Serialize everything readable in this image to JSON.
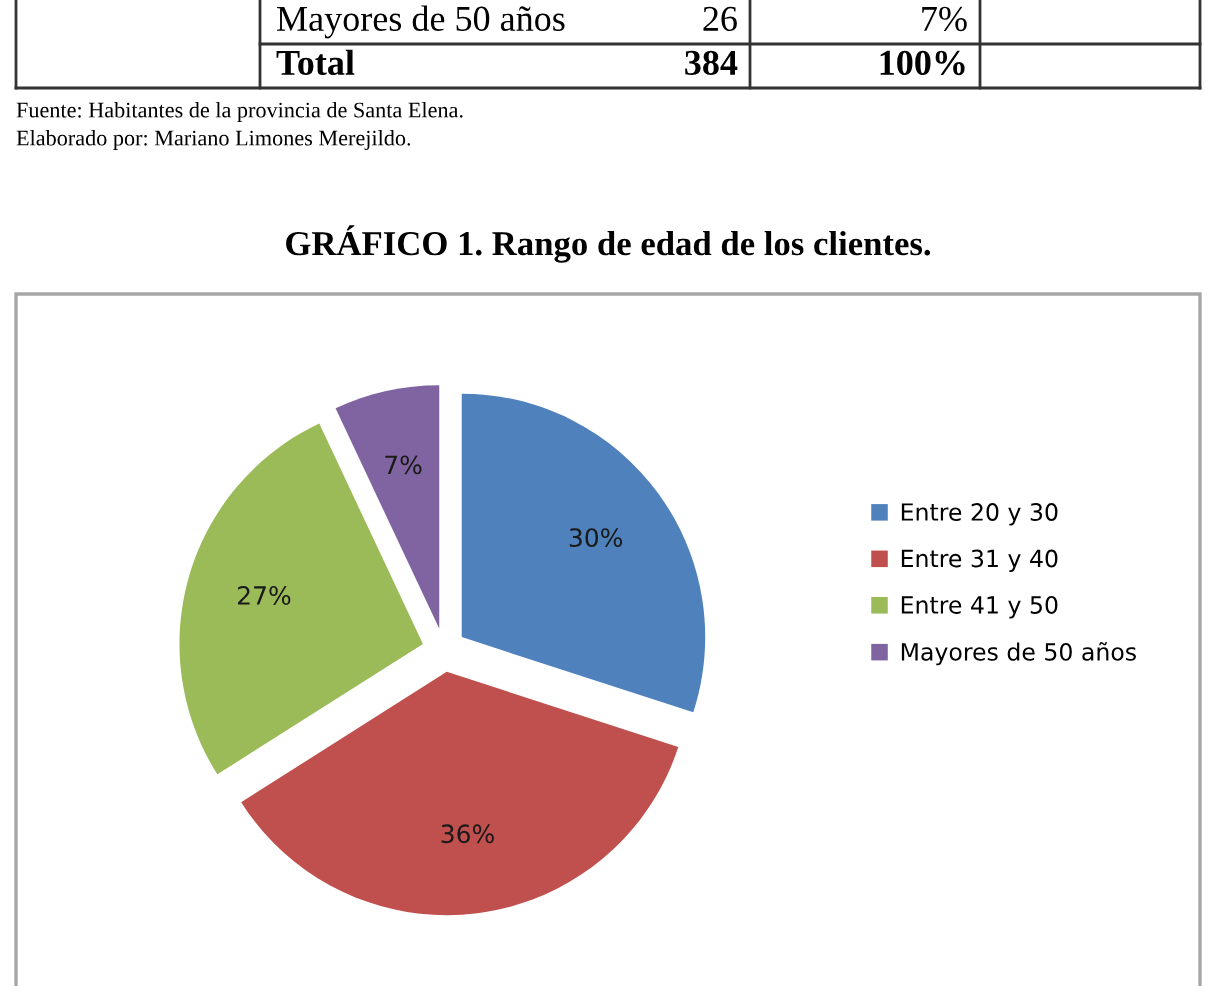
{
  "chart_data": {
    "type": "pie",
    "title": "GRÁFICO 1. Rango de edad de los clientes.",
    "categories": [
      "Entre 20 y 30",
      "Entre 31 y 40",
      "Entre 41 y 50",
      "Mayores de 50 años"
    ],
    "values": [
      30,
      36,
      27,
      7
    ],
    "colors": [
      "#4f81bd",
      "#c0504d",
      "#9bbb59",
      "#8064a2"
    ],
    "value_labels": [
      "30%",
      "36%",
      "27%",
      "7%"
    ],
    "legend": "right",
    "annotations": [
      "Mayores de 50 años",
      "26",
      "7%",
      "Total",
      "384",
      "100%",
      "Fuente: Habitantes de la provincia de Santa Elena.",
      "Elaborado por: Mariano Limones Merejildo."
    ]
  }
}
